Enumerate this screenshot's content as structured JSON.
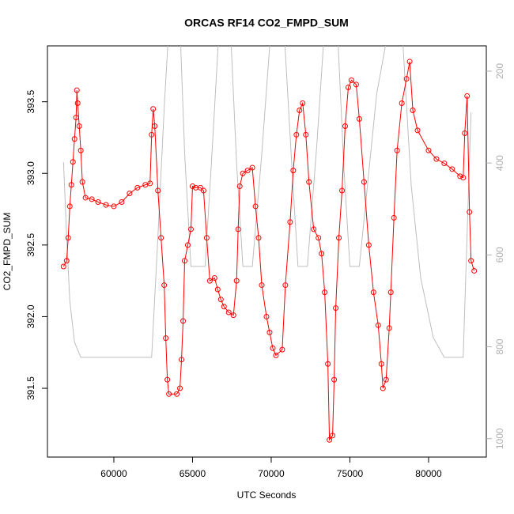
{
  "chart_data": {
    "type": "line",
    "title": "ORCAS RF14 CO2_FMPD_SUM",
    "xlabel": "UTC Seconds",
    "ylabel": "CO2_FMPD_SUM",
    "xlim": [
      55780,
      83670
    ],
    "ylim": [
      391.02,
      393.89
    ],
    "y2lim": [
      1040,
      145
    ],
    "xticks": [
      60000,
      65000,
      70000,
      75000,
      80000
    ],
    "yticks": [
      391.5,
      392.0,
      392.5,
      393.0,
      393.5
    ],
    "y2ticks": [
      200,
      400,
      600,
      800,
      1000
    ],
    "series": [
      {
        "color": "#bebebe",
        "axis": "y2",
        "markers": false,
        "x": [
          56800,
          57000,
          57200,
          57500,
          57900,
          62400,
          62800,
          63200,
          63500,
          64200,
          64500,
          64900,
          65800,
          66200,
          66700,
          67400,
          67800,
          68200,
          68800,
          69400,
          70000,
          70800,
          71300,
          71700,
          72300,
          72900,
          73400,
          74200,
          74600,
          75000,
          75600,
          76700,
          77500,
          78300,
          78900,
          79500,
          80300,
          81000,
          82200,
          82500,
          82700
        ],
        "values": [
          398,
          560,
          700,
          790,
          823,
          823,
          560,
          280,
          100,
          100,
          380,
          625,
          625,
          400,
          100,
          100,
          400,
          625,
          625,
          380,
          100,
          100,
          400,
          625,
          625,
          360,
          100,
          100,
          400,
          625,
          625,
          250,
          100,
          100,
          450,
          650,
          780,
          823,
          823,
          500,
          290
        ]
      },
      {
        "color": "#ff0000",
        "markers": true,
        "x": [
          56800,
          57000,
          57100,
          57200,
          57300,
          57400,
          57500,
          57600,
          57650,
          57700,
          57800,
          57900,
          58000,
          58200,
          58600,
          59000,
          59500,
          60000,
          60500,
          61000,
          61500,
          62000,
          62300,
          62400,
          62500,
          62600,
          62800,
          63000,
          63200,
          63300,
          63400,
          63500,
          64000,
          64200,
          64300,
          64400,
          64500,
          64700,
          64900,
          65000,
          65200,
          65500,
          65700,
          65900,
          66100,
          66400,
          66600,
          66800,
          67000,
          67300,
          67600,
          67800,
          67900,
          68000,
          68200,
          68500,
          68800,
          69000,
          69200,
          69400,
          69700,
          69900,
          70100,
          70300,
          70700,
          70900,
          71200,
          71400,
          71600,
          71800,
          72000,
          72200,
          72400,
          72700,
          73000,
          73200,
          73400,
          73600,
          73700,
          73900,
          74000,
          74100,
          74300,
          74500,
          74700,
          74900,
          75100,
          75400,
          75600,
          75900,
          76200,
          76500,
          76800,
          77000,
          77100,
          77300,
          77500,
          77600,
          77800,
          78000,
          78300,
          78600,
          78800,
          79000,
          79300,
          80000,
          80500,
          81000,
          81500,
          82000,
          82200,
          82300,
          82450,
          82600,
          82700,
          82900
        ],
        "values": [
          392.35,
          392.39,
          392.55,
          392.77,
          392.92,
          393.08,
          393.24,
          393.39,
          393.58,
          393.49,
          393.33,
          393.16,
          392.94,
          392.83,
          392.82,
          392.8,
          392.78,
          392.77,
          392.8,
          392.86,
          392.9,
          392.92,
          392.93,
          393.27,
          393.45,
          393.33,
          392.88,
          392.55,
          392.22,
          391.85,
          391.56,
          391.46,
          391.46,
          391.5,
          391.7,
          391.97,
          392.39,
          392.5,
          392.61,
          392.91,
          392.9,
          392.9,
          392.88,
          392.55,
          392.25,
          392.27,
          392.19,
          392.12,
          392.07,
          392.03,
          392.01,
          392.25,
          392.61,
          392.91,
          393.0,
          393.02,
          393.04,
          392.77,
          392.55,
          392.22,
          392.0,
          391.89,
          391.78,
          391.73,
          391.77,
          392.22,
          392.66,
          393.02,
          393.27,
          393.44,
          393.49,
          393.27,
          392.94,
          392.61,
          392.55,
          392.44,
          392.17,
          391.67,
          391.14,
          391.17,
          391.56,
          392.06,
          392.55,
          392.88,
          393.33,
          393.6,
          393.65,
          393.62,
          393.38,
          392.94,
          392.5,
          392.17,
          391.94,
          391.67,
          391.5,
          391.56,
          391.92,
          392.17,
          392.69,
          393.16,
          393.49,
          393.66,
          393.78,
          393.44,
          393.3,
          393.16,
          393.1,
          393.07,
          393.03,
          392.98,
          392.97,
          393.28,
          393.54,
          392.73,
          392.39,
          392.32
        ]
      }
    ]
  }
}
